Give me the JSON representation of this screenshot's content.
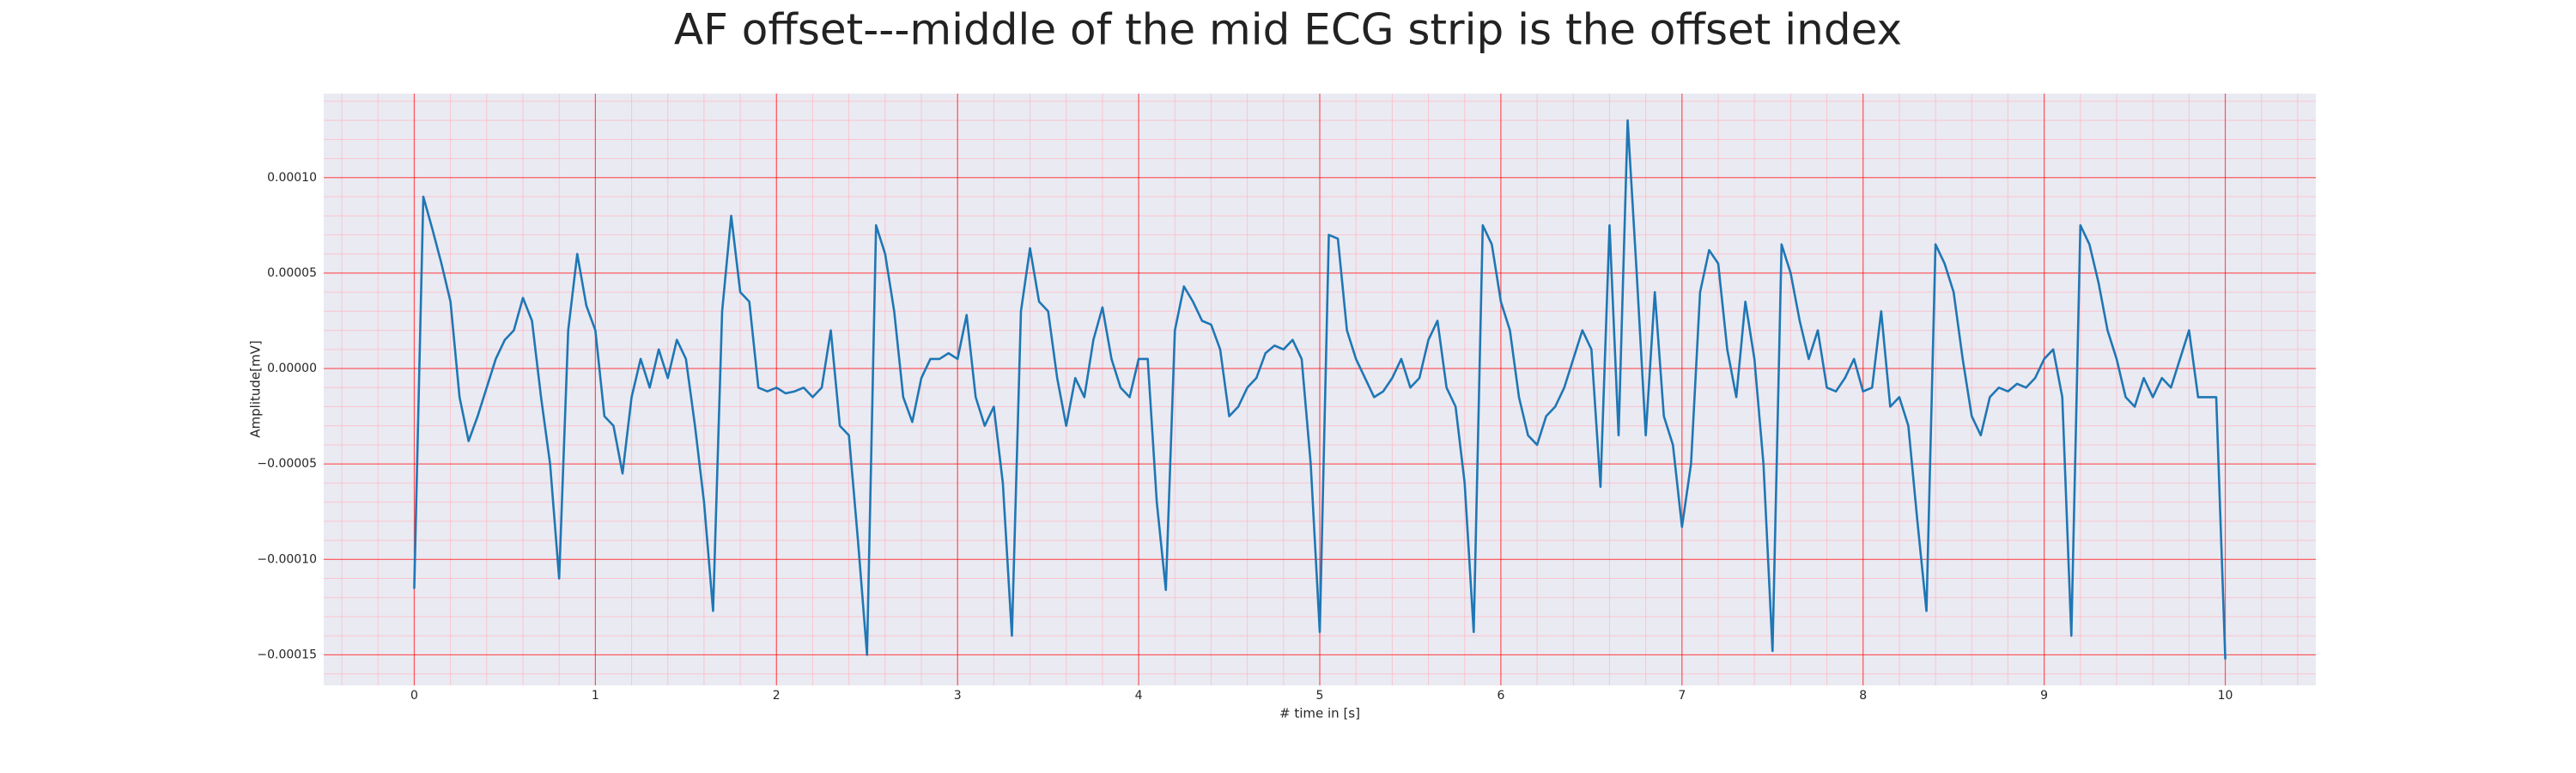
{
  "chart_data": {
    "type": "line",
    "title": "AF offset---middle of the mid ECG strip is the offset index",
    "xlabel": "# time in [s]",
    "ylabel": "Amplitude[mV]",
    "color": "#1f77b4",
    "background": "#eaeaf2",
    "grid": true,
    "grid_color": "#ff0000",
    "minor_grid_color": "#ffb6c1",
    "xlim": [
      -0.5,
      10.5
    ],
    "ylim": [
      -0.000166,
      0.000144
    ],
    "xticks": [
      0,
      1,
      2,
      3,
      4,
      5,
      6,
      7,
      8,
      9,
      10
    ],
    "yticks": [
      {
        "value": -0.00015,
        "label": "−0.00015"
      },
      {
        "value": -0.0001,
        "label": "−0.00010"
      },
      {
        "value": -5e-05,
        "label": "−0.00005"
      },
      {
        "value": 0,
        "label": "0.00000"
      },
      {
        "value": 5e-05,
        "label": "0.00005"
      },
      {
        "value": 0.0001,
        "label": "0.00010"
      }
    ],
    "xminorticks": [
      -0.4,
      -0.2,
      0,
      0.2,
      0.4,
      0.6,
      0.8,
      1,
      1.2,
      1.4,
      1.6,
      1.8,
      2,
      2.2,
      2.4,
      2.6,
      2.8,
      3,
      3.2,
      3.4,
      3.6,
      3.8,
      4,
      4.2,
      4.4,
      4.6,
      4.8,
      5,
      5.2,
      5.4,
      5.6,
      5.8,
      6,
      6.2,
      6.4,
      6.6,
      6.8,
      7,
      7.2,
      7.4,
      7.6,
      7.8,
      8,
      8.2,
      8.4,
      8.6,
      8.8,
      9,
      9.2,
      9.4,
      9.6,
      9.8,
      10,
      10.2,
      10.4
    ],
    "yminorticks": [
      -0.00016,
      -0.00015,
      -0.00014,
      -0.00013,
      -0.00012,
      -0.00011,
      -0.0001,
      -9e-05,
      -8e-05,
      -7e-05,
      -6e-05,
      -5e-05,
      -4e-05,
      -3e-05,
      -2e-05,
      -1e-05,
      0,
      1e-05,
      2e-05,
      3e-05,
      4e-05,
      5e-05,
      6e-05,
      7e-05,
      8e-05,
      9e-05,
      0.0001,
      0.00011,
      0.00012,
      0.00013,
      0.00014
    ],
    "x": [
      0,
      0.05,
      0.1,
      0.15,
      0.2,
      0.25,
      0.3,
      0.35,
      0.4,
      0.45,
      0.5,
      0.55,
      0.6,
      0.65,
      0.7,
      0.75,
      0.8,
      0.85,
      0.9,
      0.95,
      1,
      1.05,
      1.1,
      1.15,
      1.2,
      1.25,
      1.3,
      1.35,
      1.4,
      1.45,
      1.5,
      1.55,
      1.6,
      1.65,
      1.7,
      1.75,
      1.8,
      1.85,
      1.9,
      1.95,
      2,
      2.05,
      2.1,
      2.15,
      2.2,
      2.25,
      2.3,
      2.35,
      2.4,
      2.45,
      2.5,
      2.55,
      2.6,
      2.65,
      2.7,
      2.75,
      2.8,
      2.85,
      2.9,
      2.95,
      3,
      3.05,
      3.1,
      3.15,
      3.2,
      3.25,
      3.3,
      3.35,
      3.4,
      3.45,
      3.5,
      3.55,
      3.6,
      3.65,
      3.7,
      3.75,
      3.8,
      3.85,
      3.9,
      3.95,
      4,
      4.05,
      4.1,
      4.15,
      4.2,
      4.25,
      4.3,
      4.35,
      4.4,
      4.45,
      4.5,
      4.55,
      4.6,
      4.65,
      4.7,
      4.75,
      4.8,
      4.85,
      4.9,
      4.95,
      5,
      5.05,
      5.1,
      5.15,
      5.2,
      5.25,
      5.3,
      5.35,
      5.4,
      5.45,
      5.5,
      5.55,
      5.6,
      5.65,
      5.7,
      5.75,
      5.8,
      5.85,
      5.9,
      5.95,
      6,
      6.05,
      6.1,
      6.15,
      6.2,
      6.25,
      6.3,
      6.35,
      6.4,
      6.45,
      6.5,
      6.55,
      6.6,
      6.65,
      6.7,
      6.75,
      6.8,
      6.85,
      6.9,
      6.95,
      7,
      7.05,
      7.1,
      7.15,
      7.2,
      7.25,
      7.3,
      7.35,
      7.4,
      7.45,
      7.5,
      7.55,
      7.6,
      7.65,
      7.7,
      7.75,
      7.8,
      7.85,
      7.9,
      7.95,
      8,
      8.05,
      8.1,
      8.15,
      8.2,
      8.25,
      8.3,
      8.35,
      8.4,
      8.45,
      8.5,
      8.55,
      8.6,
      8.65,
      8.7,
      8.75,
      8.8,
      8.85,
      8.9,
      8.95,
      9,
      9.05,
      9.1,
      9.15,
      9.2,
      9.25,
      9.3,
      9.35,
      9.4,
      9.45,
      9.5,
      9.55,
      9.6,
      9.65,
      9.7,
      9.75,
      9.8,
      9.85,
      9.9,
      9.95,
      10
    ],
    "values": [
      -0.000115,
      9e-05,
      7.3e-05,
      5.5e-05,
      3.5e-05,
      -1.5e-05,
      -3.8e-05,
      -2.5e-05,
      -1e-05,
      5e-06,
      1.5e-05,
      2e-05,
      3.7e-05,
      2.5e-05,
      -1.5e-05,
      -5e-05,
      -0.00011,
      2e-05,
      6e-05,
      3.3e-05,
      2e-05,
      -2.5e-05,
      -3e-05,
      -5.5e-05,
      -1.5e-05,
      5e-06,
      -1e-05,
      1e-05,
      -5e-06,
      1.5e-05,
      5e-06,
      -3e-05,
      -7e-05,
      -0.000127,
      3e-05,
      8e-05,
      4e-05,
      3.5e-05,
      -1e-05,
      -1.2e-05,
      -1e-05,
      -1.3e-05,
      -1.2e-05,
      -1e-05,
      -1.5e-05,
      -1e-05,
      2e-05,
      -3e-05,
      -3.5e-05,
      -9e-05,
      -0.00015,
      7.5e-05,
      6e-05,
      3e-05,
      -1.5e-05,
      -2.8e-05,
      -5e-06,
      5e-06,
      5e-06,
      8e-06,
      5e-06,
      2.8e-05,
      -1.5e-05,
      -3e-05,
      -2e-05,
      -6e-05,
      -0.00014,
      3e-05,
      6.3e-05,
      3.5e-05,
      3e-05,
      -5e-06,
      -3e-05,
      -5e-06,
      -1.5e-05,
      1.5e-05,
      3.2e-05,
      5e-06,
      -1e-05,
      -1.5e-05,
      5e-06,
      5e-06,
      -7e-05,
      -0.000116,
      2e-05,
      4.3e-05,
      3.5e-05,
      2.5e-05,
      2.3e-05,
      1e-05,
      -2.5e-05,
      -2e-05,
      -1e-05,
      -5e-06,
      8e-06,
      1.2e-05,
      1e-05,
      1.5e-05,
      5e-06,
      -5e-05,
      -0.000138,
      7e-05,
      6.8e-05,
      2e-05,
      5e-06,
      -5e-06,
      -1.5e-05,
      -1.2e-05,
      -5e-06,
      5e-06,
      -1e-05,
      -5e-06,
      1.5e-05,
      2.5e-05,
      -1e-05,
      -2e-05,
      -6e-05,
      -0.000138,
      7.5e-05,
      6.5e-05,
      3.5e-05,
      2e-05,
      -1.5e-05,
      -3.5e-05,
      -4e-05,
      -2.5e-05,
      -2e-05,
      -1e-05,
      5e-06,
      2e-05,
      1e-05,
      -6.2e-05,
      7.5e-05,
      -3.5e-05,
      0.00013,
      5e-05,
      -3.5e-05,
      4e-05,
      -2.5e-05,
      -4e-05,
      -8.3e-05,
      -5e-05,
      4e-05,
      6.2e-05,
      5.5e-05,
      1e-05,
      -1.5e-05,
      3.5e-05,
      5e-06,
      -5e-05,
      -0.000148,
      6.5e-05,
      5e-05,
      2.5e-05,
      5e-06,
      2e-05,
      -1e-05,
      -1.2e-05,
      -5e-06,
      5e-06,
      -1.2e-05,
      -1e-05,
      3e-05,
      -2e-05,
      -1.5e-05,
      -3e-05,
      -8e-05,
      -0.000127,
      6.5e-05,
      5.5e-05,
      4e-05,
      5e-06,
      -2.5e-05,
      -3.5e-05,
      -1.5e-05,
      -1e-05,
      -1.2e-05,
      -8e-06,
      -1e-05,
      -5e-06,
      5e-06,
      1e-05,
      -1.5e-05,
      -0.00014,
      7.5e-05,
      6.5e-05,
      4.5e-05,
      2e-05,
      5e-06,
      -1.5e-05,
      -2e-05,
      -5e-06,
      -1.5e-05,
      -5e-06,
      -1e-05,
      5e-06,
      2e-05,
      -1.5e-05,
      -1.5e-05,
      -1.5e-05,
      -0.000152
    ]
  }
}
